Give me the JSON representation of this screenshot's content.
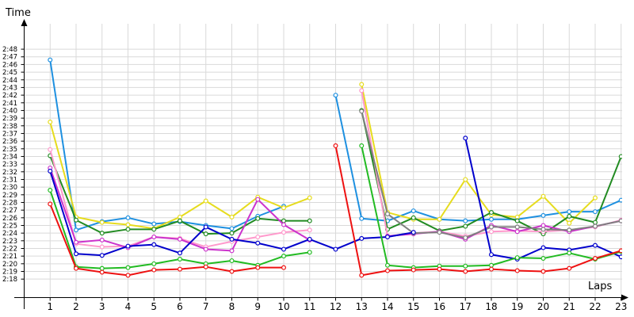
{
  "chart_data": {
    "type": "line",
    "xlabel": "Laps",
    "ylabel": "Time",
    "x": [
      1,
      2,
      3,
      4,
      5,
      6,
      7,
      8,
      9,
      10,
      11,
      12,
      13,
      14,
      15,
      16,
      17,
      18,
      19,
      20,
      21,
      22,
      23
    ],
    "xlim": [
      0,
      23.3
    ],
    "ylim_seconds": [
      137,
      171
    ],
    "grid": true,
    "legend": "none",
    "yticks": [
      "2:18",
      "2:19",
      "2:20",
      "2:21",
      "2:22",
      "2:23",
      "2:24",
      "2:25",
      "2:26",
      "2:27",
      "2:28",
      "2:29",
      "2:30",
      "2:31",
      "2:32",
      "2:33",
      "2:34",
      "2:35",
      "2:36",
      "2:37",
      "2:38",
      "2:39",
      "2:40",
      "2:41",
      "2:42",
      "2:43",
      "2:44",
      "2:45",
      "2:46",
      "2:47",
      "2:48"
    ],
    "series": [
      {
        "color": "#1e90e0",
        "values": [
          "2:46.6",
          "2:24.4",
          "2:25.5",
          "2:26.0",
          "2:25.2",
          "2:25.5",
          "2:25.0",
          "2:24.6",
          "2:26.2",
          "2:27.5",
          null,
          "2:42.0",
          "2:25.9",
          "2:25.6",
          "2:26.9",
          "2:25.8",
          "2:25.6",
          "2:25.8",
          "2:25.8",
          "2:26.3",
          "2:26.8",
          "2:26.8",
          "2:28.3"
        ]
      },
      {
        "color": "#e6dc1e",
        "values": [
          "2:38.5",
          "2:26.1",
          "2:25.4",
          "2:25.1",
          "2:24.6",
          "2:26.1",
          "2:28.2",
          "2:26.1",
          "2:28.7",
          "2:27.3",
          "2:28.6",
          null,
          "2:43.4",
          "2:26.7",
          "2:25.8",
          "2:25.8",
          "2:31.0",
          "2:26.4",
          "2:26.1",
          "2:28.8",
          "2:25.3",
          "2:28.6",
          null
        ]
      },
      {
        "color": "#228b22",
        "values": [
          "2:34.1",
          "2:25.7",
          "2:24.0",
          "2:24.5",
          "2:24.5",
          "2:25.6",
          "2:23.9",
          "2:24.0",
          "2:25.9",
          "2:25.6",
          "2:25.6",
          null,
          "2:40.0",
          "2:24.5",
          "2:26.0",
          "2:24.3",
          "2:24.9",
          "2:26.7",
          "2:25.6",
          "2:23.9",
          "2:26.2",
          "2:25.4",
          "2:34.0"
        ]
      },
      {
        "color": "#ff99cc",
        "values": [
          "2:34.9",
          "2:22.6",
          "2:22.2",
          "2:22.3",
          "2:23.5",
          "2:23.3",
          "2:22.2",
          "2:22.9",
          "2:23.5",
          "2:24.1",
          "2:24.4",
          null,
          "2:42.6",
          "2:23.6",
          "2:24.0",
          "2:24.2",
          "2:23.6",
          "2:24.2",
          "2:24.3",
          "2:24.2",
          "2:24.4",
          "2:24.8",
          "2:25.7"
        ]
      },
      {
        "color": "#cc33cc",
        "values": [
          "2:32.5",
          "2:22.8",
          "2:23.1",
          "2:22.1",
          "2:23.5",
          "2:23.2",
          "2:21.9",
          "2:21.7",
          "2:28.4",
          "2:25.1",
          "2:23.1",
          null,
          null,
          "2:23.6",
          "2:23.9",
          "2:24.2",
          "2:23.2",
          "2:25.0",
          "2:24.2",
          "2:25.0",
          "2:24.2",
          "2:24.9",
          "2:25.6"
        ]
      },
      {
        "color": "#808080",
        "values": [
          null,
          null,
          null,
          null,
          null,
          null,
          null,
          null,
          null,
          null,
          null,
          null,
          "2:39.9",
          "2:26.5",
          "2:24.0",
          "2:24.1",
          "2:23.4",
          "2:24.8",
          "2:24.8",
          "2:24.5",
          "2:24.4",
          "2:24.9",
          "2:25.6"
        ]
      },
      {
        "color": "#0000cc",
        "values": [
          "2:32.1",
          "2:21.3",
          "2:21.1",
          "2:22.3",
          "2:22.5",
          "2:21.4",
          "2:24.8",
          "2:23.2",
          "2:22.7",
          "2:21.9",
          "2:23.2",
          "2:21.9",
          "2:23.3",
          "2:23.5",
          "2:24.1",
          null,
          "2:36.4",
          "2:21.2",
          "2:20.6",
          "2:22.1",
          "2:21.8",
          "2:22.4",
          "2:20.9"
        ]
      },
      {
        "color": "#22bb22",
        "values": [
          "2:29.6",
          "2:19.6",
          "2:19.4",
          "2:19.5",
          "2:20.0",
          "2:20.6",
          "2:20.0",
          "2:20.4",
          "2:19.8",
          "2:21.0",
          "2:21.5",
          null,
          "2:35.4",
          "2:19.8",
          "2:19.5",
          "2:19.7",
          "2:19.7",
          "2:19.8",
          "2:20.8",
          "2:20.7",
          "2:21.4",
          "2:20.6",
          "2:21.6"
        ]
      },
      {
        "color": "#ee1111",
        "values": [
          "2:27.8",
          "2:19.4",
          "2:18.9",
          "2:18.5",
          "2:19.2",
          "2:19.3",
          "2:19.6",
          "2:19.0",
          "2:19.5",
          "2:19.5",
          null,
          "2:35.4",
          "2:18.5",
          "2:19.1",
          "2:19.2",
          "2:19.3",
          "2:19.0",
          "2:19.3",
          "2:19.1",
          "2:19.0",
          "2:19.4",
          "2:20.7",
          "2:21.7"
        ]
      }
    ]
  }
}
